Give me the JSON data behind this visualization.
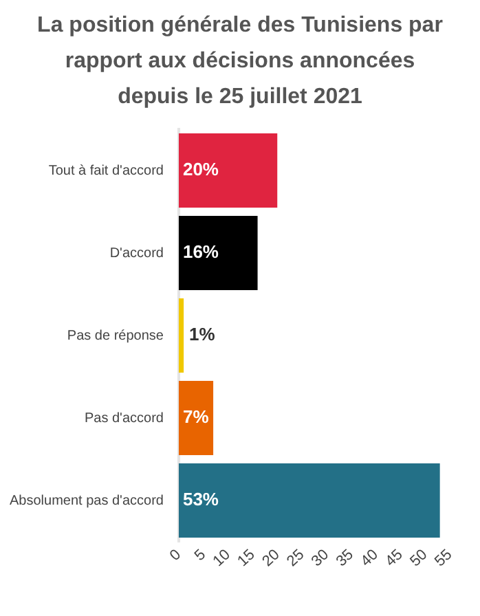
{
  "chart_data": {
    "type": "bar",
    "orientation": "horizontal",
    "title": "La position générale des Tunisiens par rapport aux décisions annoncées depuis le 25 juillet 2021",
    "categories": [
      "Tout à fait d'accord",
      "D'accord",
      "Pas de réponse",
      "Pas d'accord",
      "Absolument pas d'accord"
    ],
    "values": [
      20,
      16,
      1,
      7,
      53
    ],
    "colors": [
      "#e02440",
      "#000000",
      "#f0c800",
      "#e86400",
      "#237087"
    ],
    "value_labels": [
      "20%",
      "16%",
      "1%",
      "7%",
      "53%"
    ],
    "xlim": [
      0,
      55
    ],
    "xticks": [
      0,
      5,
      10,
      15,
      20,
      25,
      30,
      35,
      40,
      45,
      50,
      55
    ],
    "grid": false,
    "legend": false
  }
}
